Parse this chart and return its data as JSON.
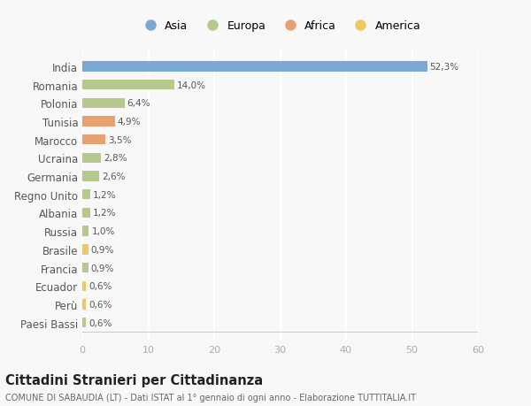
{
  "countries": [
    "India",
    "Romania",
    "Polonia",
    "Tunisia",
    "Marocco",
    "Ucraina",
    "Germania",
    "Regno Unito",
    "Albania",
    "Russia",
    "Brasile",
    "Francia",
    "Ecuador",
    "Perù",
    "Paesi Bassi"
  ],
  "values": [
    52.3,
    14.0,
    6.4,
    4.9,
    3.5,
    2.8,
    2.6,
    1.2,
    1.2,
    1.0,
    0.9,
    0.9,
    0.6,
    0.6,
    0.6
  ],
  "labels": [
    "52,3%",
    "14,0%",
    "6,4%",
    "4,9%",
    "3,5%",
    "2,8%",
    "2,6%",
    "1,2%",
    "1,2%",
    "1,0%",
    "0,9%",
    "0,9%",
    "0,6%",
    "0,6%",
    "0,6%"
  ],
  "colors": [
    "#7aa8d2",
    "#b5c98e",
    "#b5c98e",
    "#e8a070",
    "#e8a070",
    "#b5c98e",
    "#b5c98e",
    "#b5c98e",
    "#b5c98e",
    "#b5c98e",
    "#f0c860",
    "#b5c98e",
    "#f0c860",
    "#f0c860",
    "#b5c98e"
  ],
  "legend_labels": [
    "Asia",
    "Europa",
    "Africa",
    "America"
  ],
  "legend_colors": [
    "#7aa8d2",
    "#b5c98e",
    "#e8a070",
    "#f0c860"
  ],
  "title": "Cittadini Stranieri per Cittadinanza",
  "subtitle": "COMUNE DI SABAUDIA (LT) - Dati ISTAT al 1° gennaio di ogni anno - Elaborazione TUTTITALIA.IT",
  "xlim": [
    0,
    60
  ],
  "xticks": [
    0,
    10,
    20,
    30,
    40,
    50,
    60
  ],
  "background_color": "#f8f8f8",
  "grid_color": "#ffffff",
  "bar_height": 0.55
}
